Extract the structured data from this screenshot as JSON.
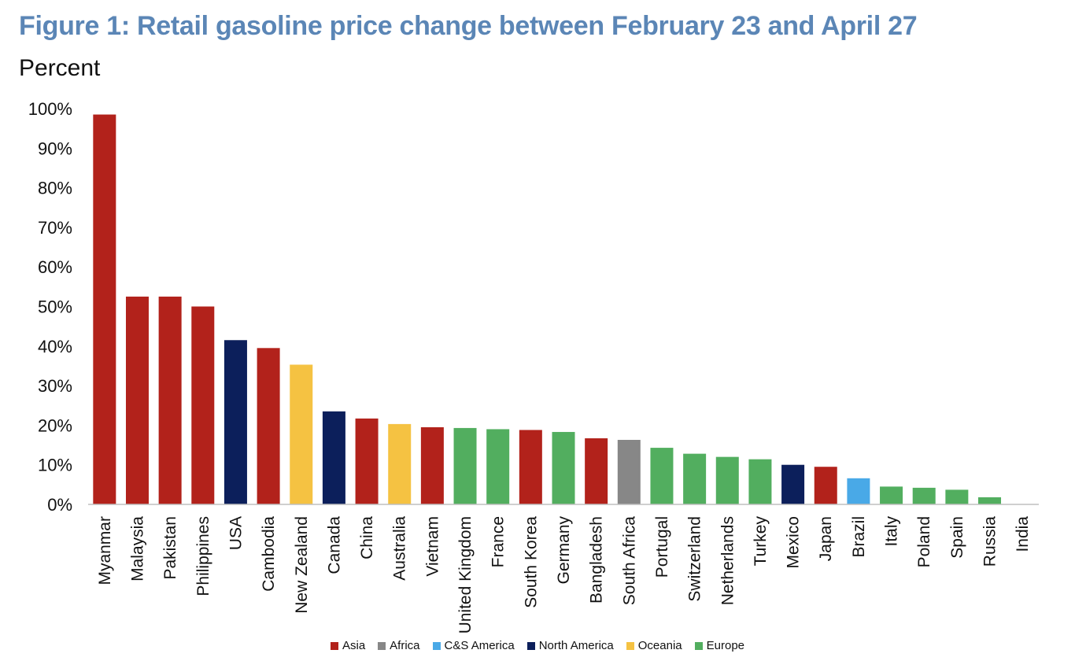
{
  "title": "Figure 1: Retail gasoline price change between February 23 and April 27",
  "ylabel": "Percent",
  "chart_data": {
    "type": "bar",
    "title": "Figure 1: Retail gasoline price change between February 23 and April 27",
    "ylabel": "Percent",
    "xlabel": "",
    "ylim": [
      0,
      100
    ],
    "yticks": [
      "0%",
      "10%",
      "20%",
      "30%",
      "40%",
      "50%",
      "60%",
      "70%",
      "80%",
      "90%",
      "100%"
    ],
    "grid": false,
    "legend_placement": "bottom",
    "categories": [
      "Myanmar",
      "Malaysia",
      "Pakistan",
      "Philippines",
      "USA",
      "Cambodia",
      "New Zealand",
      "Canada",
      "China",
      "Australia",
      "Vietnam",
      "United Kingdom",
      "France",
      "South Korea",
      "Germany",
      "Bangladesh",
      "South Africa",
      "Portugal",
      "Switzerland",
      "Netherlands",
      "Turkey",
      "Mexico",
      "Japan",
      "Brazil",
      "Italy",
      "Poland",
      "Spain",
      "Russia",
      "India"
    ],
    "values": [
      98.5,
      52.5,
      52.5,
      50,
      41.5,
      39.5,
      35.3,
      23.5,
      21.7,
      20.3,
      19.5,
      19.3,
      19,
      18.8,
      18.3,
      16.7,
      16.3,
      14.3,
      12.8,
      12,
      11.4,
      10,
      9.5,
      6.6,
      4.5,
      4.2,
      3.7,
      1.8,
      0
    ],
    "regions": [
      "Asia",
      "Asia",
      "Asia",
      "Asia",
      "North America",
      "Asia",
      "Oceania",
      "North America",
      "Asia",
      "Oceania",
      "Asia",
      "Europe",
      "Europe",
      "Asia",
      "Europe",
      "Asia",
      "Africa",
      "Europe",
      "Europe",
      "Europe",
      "Europe",
      "North America",
      "Asia",
      "C&S America",
      "Europe",
      "Europe",
      "Europe",
      "Europe",
      "Asia"
    ],
    "legend": [
      {
        "name": "Asia",
        "color": "#b2221b"
      },
      {
        "name": "Africa",
        "color": "#878787"
      },
      {
        "name": "C&S America",
        "color": "#49a9e7"
      },
      {
        "name": "North America",
        "color": "#0c1f5b"
      },
      {
        "name": "Oceania",
        "color": "#f5c242"
      },
      {
        "name": "Europe",
        "color": "#52ae5f"
      }
    ]
  }
}
